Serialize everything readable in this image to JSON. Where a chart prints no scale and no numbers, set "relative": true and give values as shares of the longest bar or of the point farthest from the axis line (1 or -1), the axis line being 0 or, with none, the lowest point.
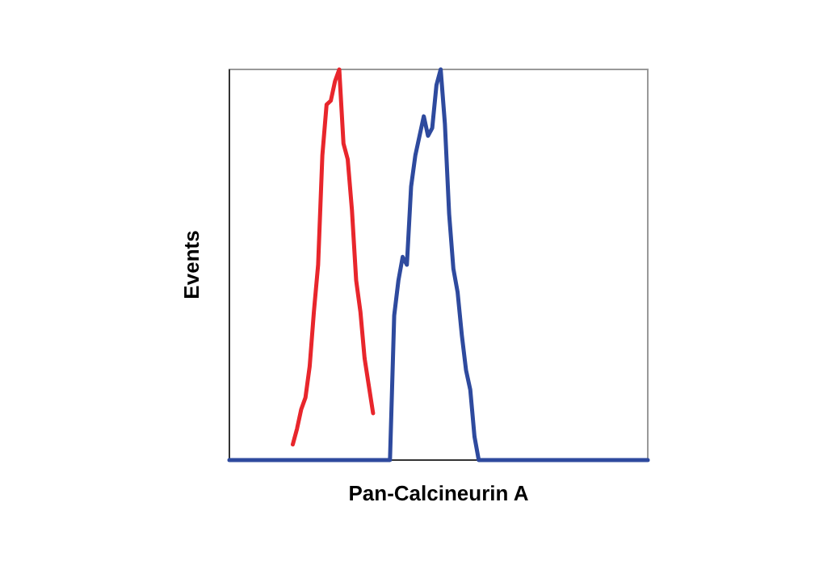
{
  "chart_data": {
    "type": "line",
    "relative": true,
    "xlabel": "Pan-Calcineurin A",
    "ylabel": "Events",
    "categories": [
      null,
      null,
      null,
      null,
      null,
      null,
      null,
      null,
      null,
      null,
      null,
      null,
      null,
      null,
      null,
      null,
      null,
      null,
      null,
      null,
      null,
      null,
      null,
      null,
      null,
      null,
      null,
      null,
      null,
      null,
      null,
      null,
      null,
      null,
      null,
      null,
      null,
      null,
      null,
      null,
      null,
      null,
      null,
      null,
      null,
      null,
      null,
      null,
      null,
      null,
      null,
      null,
      null,
      null,
      null,
      null,
      null,
      null,
      null,
      null,
      null,
      null,
      null,
      null,
      null,
      null,
      null,
      null,
      null,
      null,
      null,
      null,
      null,
      null,
      null,
      null,
      null,
      null,
      null,
      null,
      null,
      null,
      null,
      null,
      null,
      null,
      null,
      null,
      null,
      null,
      null,
      null,
      null,
      null,
      null,
      null,
      null,
      null,
      null,
      null
    ],
    "series": [
      {
        "color": "#2e4a9e",
        "values": [
          0,
          0,
          0,
          0,
          0,
          0,
          0,
          0,
          0,
          0,
          0,
          0,
          0,
          0,
          0,
          0,
          0,
          0,
          0,
          0,
          0,
          0,
          0,
          0,
          0,
          0,
          0,
          0,
          0,
          0,
          0,
          0,
          0,
          0,
          0,
          0,
          0,
          0,
          0,
          0.37,
          0.46,
          0.52,
          0.5,
          0.7,
          0.78,
          0.83,
          0.88,
          0.83,
          0.85,
          0.96,
          1,
          0.86,
          0.63,
          0.49,
          0.43,
          0.32,
          0.23,
          0.18,
          0.06,
          0,
          0,
          0,
          0,
          0,
          0,
          0,
          0,
          0,
          0,
          0,
          0,
          0,
          0,
          0,
          0,
          0,
          0,
          0,
          0,
          0,
          0,
          0,
          0,
          0,
          0,
          0,
          0,
          0,
          0,
          0,
          0,
          0,
          0,
          0,
          0,
          0,
          0,
          0,
          0,
          0
        ]
      },
      {
        "color": "#e8262c",
        "values": [
          null,
          null,
          null,
          null,
          null,
          null,
          null,
          null,
          null,
          null,
          null,
          null,
          null,
          null,
          null,
          0.04,
          0.08,
          0.13,
          0.16,
          0.24,
          0.38,
          0.5,
          0.78,
          0.91,
          0.92,
          0.97,
          1,
          0.81,
          0.77,
          0.64,
          0.46,
          0.38,
          0.26,
          0.19,
          0.12,
          null,
          null,
          null,
          null,
          null,
          null,
          null,
          null,
          null,
          null,
          null,
          null,
          null,
          null,
          null,
          null,
          null,
          null,
          null,
          null,
          null,
          null,
          null,
          null,
          null,
          null,
          null,
          null,
          null,
          null,
          null,
          null,
          null,
          null,
          null,
          null,
          null,
          null,
          null,
          null,
          null,
          null,
          null,
          null,
          null,
          null,
          null,
          null,
          null,
          null,
          null,
          null,
          null,
          null,
          null,
          null,
          null,
          null,
          null,
          null,
          null,
          null,
          null,
          null,
          null
        ]
      }
    ]
  }
}
